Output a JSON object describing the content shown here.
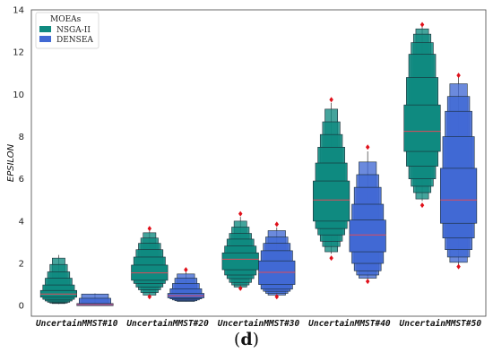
{
  "caption": {
    "open": "(",
    "letter": "d",
    "close": ")"
  },
  "chart_data": {
    "type": "boxen",
    "title": "",
    "xlabel": "",
    "ylabel": "EPSILON",
    "ylim": [
      -0.5,
      14
    ],
    "yticks": [
      0,
      2,
      4,
      6,
      8,
      10,
      12,
      14
    ],
    "categories": [
      "UncertainMMST#10",
      "UncertainMMST#20",
      "UncertainMMST#30",
      "UncertainMMST#40",
      "UncertainMMST#50"
    ],
    "legend": {
      "title": "MOEAs",
      "position": "top-left"
    },
    "grid": false,
    "series": [
      {
        "name": "NSGA-II",
        "color": "#0f8a80",
        "boxes": [
          {
            "median": 0.55,
            "levels": [
              [
                0.4,
                0.72
              ],
              [
                0.3,
                0.98
              ],
              [
                0.22,
                1.3
              ],
              [
                0.16,
                1.6
              ],
              [
                0.12,
                1.95
              ],
              [
                0.1,
                2.25
              ]
            ],
            "max": 2.4,
            "min": 0.08,
            "outliers": []
          },
          {
            "median": 1.55,
            "levels": [
              [
                1.2,
                1.92
              ],
              [
                1.05,
                2.3
              ],
              [
                0.88,
                2.65
              ],
              [
                0.75,
                2.95
              ],
              [
                0.62,
                3.2
              ],
              [
                0.5,
                3.45
              ]
            ],
            "max": 3.6,
            "min": 0.45,
            "outliers": [
              3.65,
              0.42
            ]
          },
          {
            "median": 2.2,
            "levels": [
              [
                1.7,
                2.5
              ],
              [
                1.45,
                2.82
              ],
              [
                1.28,
                3.15
              ],
              [
                1.1,
                3.42
              ],
              [
                0.98,
                3.72
              ],
              [
                0.88,
                4.0
              ]
            ],
            "max": 4.2,
            "min": 0.85,
            "outliers": [
              4.35,
              0.82
            ]
          },
          {
            "median": 5.0,
            "levels": [
              [
                4.0,
                5.9
              ],
              [
                3.65,
                6.75
              ],
              [
                3.35,
                7.5
              ],
              [
                3.05,
                8.1
              ],
              [
                2.8,
                8.7
              ],
              [
                2.55,
                9.3
              ]
            ],
            "max": 9.6,
            "min": 2.45,
            "outliers": [
              9.75,
              2.25
            ]
          },
          {
            "median": 8.25,
            "levels": [
              [
                7.3,
                9.5
              ],
              [
                6.6,
                10.8
              ],
              [
                6.0,
                11.9
              ],
              [
                5.65,
                12.45
              ],
              [
                5.35,
                12.85
              ],
              [
                5.05,
                13.1
              ]
            ],
            "max": 13.2,
            "min": 4.95,
            "outliers": [
              13.3,
              4.75
            ]
          }
        ]
      },
      {
        "name": "DENSEA",
        "color": "#4169d4",
        "boxes": [
          {
            "median": 0.05,
            "levels": [
              [
                0.0,
                0.1
              ],
              [
                0.0,
                0.35
              ],
              [
                0.0,
                0.55
              ]
            ],
            "max": 0.58,
            "min": 0.0,
            "outliers": []
          },
          {
            "median": 0.47,
            "levels": [
              [
                0.37,
                0.58
              ],
              [
                0.32,
                0.8
              ],
              [
                0.27,
                1.05
              ],
              [
                0.23,
                1.3
              ],
              [
                0.2,
                1.5
              ]
            ],
            "max": 1.6,
            "min": 0.2,
            "outliers": [
              1.7
            ]
          },
          {
            "median": 1.58,
            "levels": [
              [
                1.0,
                2.12
              ],
              [
                0.78,
                2.6
              ],
              [
                0.68,
                2.95
              ],
              [
                0.58,
                3.25
              ],
              [
                0.5,
                3.55
              ]
            ],
            "max": 3.7,
            "min": 0.45,
            "outliers": [
              3.85,
              0.42
            ]
          },
          {
            "median": 3.35,
            "levels": [
              [
                2.55,
                4.05
              ],
              [
                2.0,
                4.8
              ],
              [
                1.65,
                5.6
              ],
              [
                1.45,
                6.2
              ],
              [
                1.3,
                6.8
              ]
            ],
            "max": 7.3,
            "min": 1.2,
            "outliers": [
              7.5,
              1.15
            ]
          },
          {
            "median": 5.0,
            "levels": [
              [
                3.9,
                6.5
              ],
              [
                3.2,
                8.0
              ],
              [
                2.65,
                9.2
              ],
              [
                2.3,
                9.9
              ],
              [
                2.05,
                10.5
              ]
            ],
            "max": 10.8,
            "min": 1.95,
            "outliers": [
              10.9,
              1.85
            ]
          }
        ]
      }
    ]
  }
}
